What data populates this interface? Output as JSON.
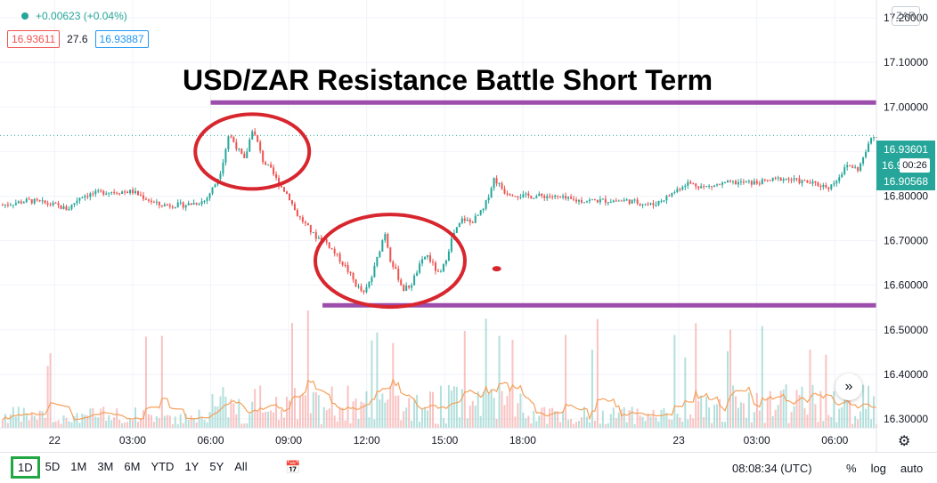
{
  "legend": {
    "change": "+0.00623 (+0.04%)",
    "bid": "16.93611",
    "spread": "27.6",
    "ask": "16.93887"
  },
  "currency_button": "ZAR",
  "title": "USD/ZAR Resistance Battle Short Term",
  "price_labels": {
    "upper": "16.93601",
    "hidden": "16.9",
    "countdown": "00:26",
    "lower": "16.90568"
  },
  "toolbar": {
    "ranges": [
      "1D",
      "5D",
      "1M",
      "3M",
      "6M",
      "YTD",
      "1Y",
      "5Y",
      "All"
    ],
    "active_range": "1D",
    "clock": "08:08:34 (UTC)",
    "percent": "%",
    "log": "log",
    "auto": "auto"
  },
  "colors": {
    "up": "#26a69a",
    "down": "#ef5350",
    "annotation_line": "#9c4dac",
    "annotation_ellipse": "#d8262e",
    "volume_ma": "#f5a05a"
  },
  "chart_data": {
    "type": "candlestick",
    "title": "USD/ZAR Resistance Battle Short Term",
    "y_ticks": [
      17.2,
      17.1,
      17.0,
      16.9,
      16.8,
      16.7,
      16.6,
      16.5,
      16.4,
      16.3
    ],
    "y_tick_labels": [
      "17.20000",
      "17.10000",
      "17.00000",
      "16.90000",
      "16.80000",
      "16.70000",
      "16.60000",
      "16.50000",
      "16.40000",
      "16.30000"
    ],
    "ylim": [
      16.28,
      17.24
    ],
    "x_tick_labels": [
      "22",
      "03:00",
      "06:00",
      "09:00",
      "12:00",
      "15:00",
      "18:00",
      "23",
      "03:00",
      "06:00"
    ],
    "x_tick_hours": [
      0,
      3,
      6,
      9,
      12,
      15,
      18,
      24,
      27,
      30
    ],
    "xlim_hours": [
      -2.1,
      31.6
    ],
    "price_path": [
      [
        -2.0,
        16.78
      ],
      [
        -1.0,
        16.79
      ],
      [
        0.0,
        16.78
      ],
      [
        0.5,
        16.77
      ],
      [
        1.0,
        16.8
      ],
      [
        2.0,
        16.81
      ],
      [
        3.0,
        16.81
      ],
      [
        4.0,
        16.78
      ],
      [
        5.0,
        16.78
      ],
      [
        5.8,
        16.79
      ],
      [
        6.2,
        16.83
      ],
      [
        6.4,
        16.86
      ],
      [
        6.7,
        16.94
      ],
      [
        6.9,
        16.92
      ],
      [
        7.3,
        16.88
      ],
      [
        7.6,
        16.95
      ],
      [
        7.8,
        16.92
      ],
      [
        8.0,
        16.88
      ],
      [
        8.3,
        16.86
      ],
      [
        8.6,
        16.83
      ],
      [
        9.0,
        16.8
      ],
      [
        9.3,
        16.76
      ],
      [
        9.6,
        16.74
      ],
      [
        10.0,
        16.71
      ],
      [
        10.4,
        16.7
      ],
      [
        10.8,
        16.67
      ],
      [
        11.2,
        16.64
      ],
      [
        11.6,
        16.6
      ],
      [
        11.9,
        16.58
      ],
      [
        12.2,
        16.62
      ],
      [
        12.5,
        16.68
      ],
      [
        12.7,
        16.72
      ],
      [
        12.9,
        16.66
      ],
      [
        13.2,
        16.62
      ],
      [
        13.4,
        16.59
      ],
      [
        13.7,
        16.6
      ],
      [
        14.0,
        16.64
      ],
      [
        14.3,
        16.67
      ],
      [
        14.5,
        16.65
      ],
      [
        14.8,
        16.62
      ],
      [
        15.0,
        16.65
      ],
      [
        15.3,
        16.71
      ],
      [
        15.7,
        16.75
      ],
      [
        16.0,
        16.74
      ],
      [
        16.5,
        16.77
      ],
      [
        16.9,
        16.84
      ],
      [
        17.3,
        16.81
      ],
      [
        18.0,
        16.8
      ],
      [
        19.0,
        16.8
      ],
      [
        20.0,
        16.79
      ],
      [
        21.0,
        16.79
      ],
      [
        22.0,
        16.79
      ],
      [
        23.0,
        16.78
      ],
      [
        23.6,
        16.8
      ],
      [
        24.3,
        16.83
      ],
      [
        25.0,
        16.82
      ],
      [
        26.0,
        16.83
      ],
      [
        27.0,
        16.83
      ],
      [
        28.0,
        16.84
      ],
      [
        29.0,
        16.83
      ],
      [
        29.8,
        16.82
      ],
      [
        30.1,
        16.84
      ],
      [
        30.5,
        16.87
      ],
      [
        30.9,
        16.86
      ],
      [
        31.2,
        16.9
      ],
      [
        31.4,
        16.93
      ],
      [
        31.6,
        16.936
      ]
    ],
    "annotations": {
      "resistance_level": 17.01,
      "support_level": 16.555
    }
  }
}
